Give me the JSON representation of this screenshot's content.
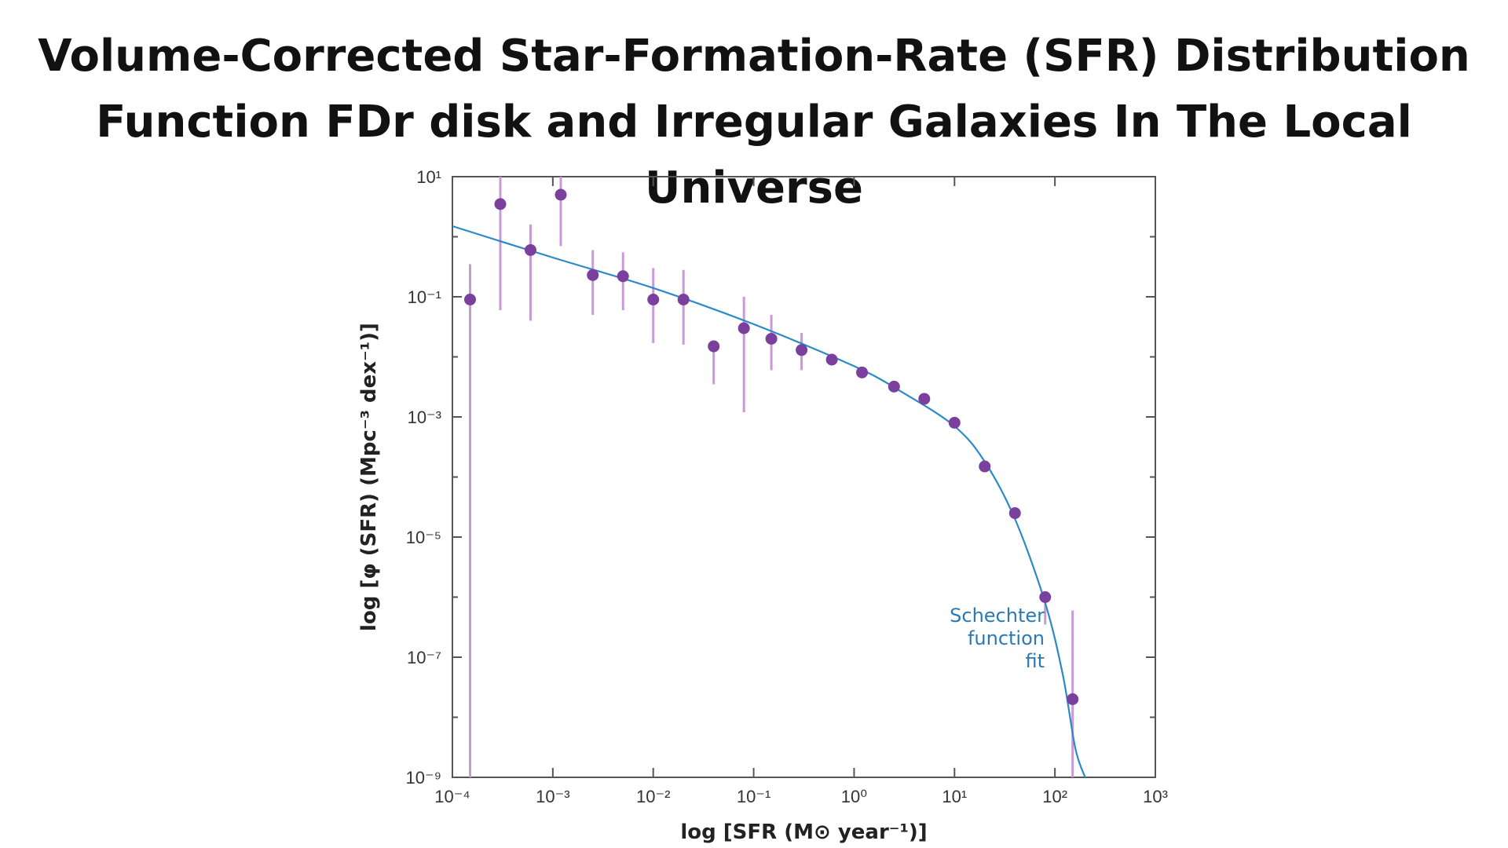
{
  "title": {
    "line1": "Volume-Corrected Star-Formation-Rate (SFR) Distribution",
    "line2": "Function FDr disk and Irregular Galaxies In The Local Universe"
  },
  "chart_data": {
    "type": "scatter",
    "x_scale": "log",
    "y_scale": "log",
    "xlim": [
      0.0001,
      1000
    ],
    "ylim": [
      1e-09,
      10
    ],
    "xlabel": "log [SFR (M⊙ year⁻¹)]",
    "ylabel": "log [φ (SFR) (Mpc⁻³ dex⁻¹)]",
    "x_ticks": [
      {
        "label": "10⁻⁴",
        "value": 0.0001
      },
      {
        "label": "10⁻³",
        "value": 0.001
      },
      {
        "label": "10⁻²",
        "value": 0.01
      },
      {
        "label": "10⁻¹",
        "value": 0.1
      },
      {
        "label": "10⁰",
        "value": 1
      },
      {
        "label": "10¹",
        "value": 10
      },
      {
        "label": "10²",
        "value": 100
      },
      {
        "label": "10³",
        "value": 1000
      }
    ],
    "y_ticks": [
      {
        "label": "10¹",
        "value": 10
      },
      {
        "label": "10⁻¹",
        "value": 0.1
      },
      {
        "label": "10⁻³",
        "value": 0.001
      },
      {
        "label": "10⁻⁵",
        "value": 1e-05
      },
      {
        "label": "10⁻⁷",
        "value": 1e-07
      },
      {
        "label": "10⁻⁹",
        "value": 1e-09
      }
    ],
    "grid": false,
    "series": [
      {
        "kind": "points_with_error_bars",
        "color": "#7b3f9e",
        "error_color": "#c89ad8",
        "points": [
          {
            "x": 0.00015,
            "y": 0.09,
            "ylo": 1e-09,
            "yhi": 0.35
          },
          {
            "x": 0.0003,
            "y": 3.5,
            "ylo": 0.06,
            "yhi": 12
          },
          {
            "x": 0.0006,
            "y": 0.6,
            "ylo": 0.04,
            "yhi": 1.6
          },
          {
            "x": 0.0012,
            "y": 5,
            "ylo": 0.7,
            "yhi": 15
          },
          {
            "x": 0.0025,
            "y": 0.23,
            "ylo": 0.05,
            "yhi": 0.6
          },
          {
            "x": 0.005,
            "y": 0.22,
            "ylo": 0.06,
            "yhi": 0.55
          },
          {
            "x": 0.01,
            "y": 0.09,
            "ylo": 0.017,
            "yhi": 0.3
          },
          {
            "x": 0.02,
            "y": 0.09,
            "ylo": 0.016,
            "yhi": 0.28
          },
          {
            "x": 0.04,
            "y": 0.015,
            "ylo": 0.0035,
            "yhi": 0.015
          },
          {
            "x": 0.08,
            "y": 0.03,
            "ylo": 0.0012,
            "yhi": 0.1
          },
          {
            "x": 0.15,
            "y": 0.02,
            "ylo": 0.006,
            "yhi": 0.05
          },
          {
            "x": 0.3,
            "y": 0.013,
            "ylo": 0.006,
            "yhi": 0.025
          },
          {
            "x": 0.6,
            "y": 0.009,
            "ylo": 0.009,
            "yhi": 0.009
          },
          {
            "x": 1.2,
            "y": 0.0055,
            "ylo": 0.0055,
            "yhi": 0.0055
          },
          {
            "x": 2.5,
            "y": 0.0032,
            "ylo": 0.0032,
            "yhi": 0.0032
          },
          {
            "x": 5,
            "y": 0.002,
            "ylo": 0.002,
            "yhi": 0.002
          },
          {
            "x": 10,
            "y": 0.0008,
            "ylo": 0.0008,
            "yhi": 0.0008
          },
          {
            "x": 20,
            "y": 0.00015,
            "ylo": 0.00015,
            "yhi": 0.00015
          },
          {
            "x": 40,
            "y": 2.5e-05,
            "ylo": 2.5e-05,
            "yhi": 2.5e-05
          },
          {
            "x": 80,
            "y": 1e-06,
            "ylo": 3.5e-07,
            "yhi": 1e-06
          },
          {
            "x": 150,
            "y": 2e-08,
            "ylo": 1e-09,
            "yhi": 6e-07
          }
        ]
      },
      {
        "kind": "fit_line",
        "color": "#2a8ac8",
        "x": [
          0.0001,
          0.001,
          0.01,
          0.1,
          1,
          3,
          10,
          20,
          40,
          80,
          120,
          160,
          200
        ],
        "y": [
          1.5,
          0.45,
          0.14,
          0.035,
          0.007,
          0.0026,
          0.0007,
          0.00018,
          2e-05,
          8e-07,
          5e-08,
          3e-09,
          1e-09
        ]
      }
    ],
    "annotation": {
      "lines": [
        "Schechter",
        "function",
        "fit"
      ],
      "color": "#2a79b5"
    }
  }
}
